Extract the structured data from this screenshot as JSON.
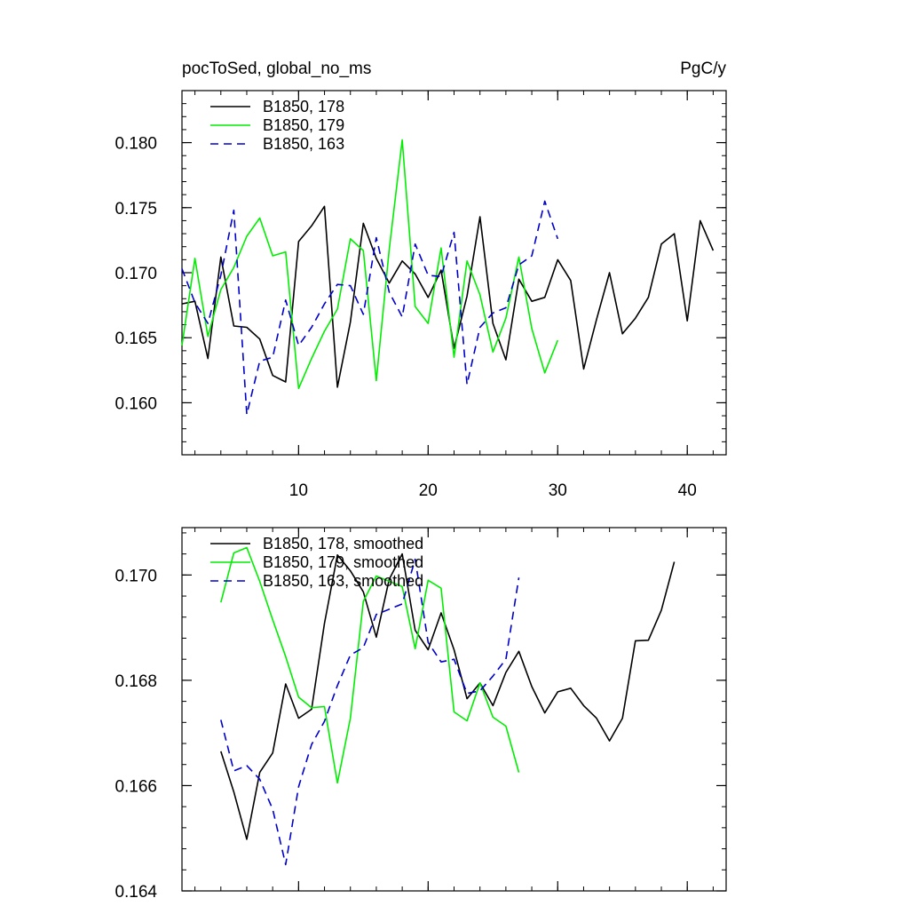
{
  "chart_data": [
    {
      "type": "line",
      "title": "pocToSed, global_no_ms",
      "units": "PgC/y",
      "xlim": [
        1,
        43
      ],
      "ylim": [
        0.156,
        0.184
      ],
      "x_ticks": [
        10,
        20,
        30,
        40
      ],
      "y_ticks": [
        0.16,
        0.165,
        0.17,
        0.175,
        0.18
      ],
      "y_tick_labels": [
        "0.160",
        "0.165",
        "0.170",
        "0.175",
        "0.180"
      ],
      "legend_position": "top-left",
      "series": [
        {
          "name": "B1850, 178",
          "color": "#000000",
          "dash": "solid",
          "x": [
            1,
            2,
            3,
            4,
            5,
            6,
            7,
            8,
            9,
            10,
            11,
            12,
            13,
            14,
            15,
            16,
            17,
            18,
            19,
            20,
            21,
            22,
            23,
            24,
            25,
            26,
            27,
            28,
            29,
            30,
            31,
            32,
            33,
            34,
            35,
            36,
            37,
            38,
            39,
            40,
            41,
            42
          ],
          "y": [
            0.1676,
            0.1678,
            0.1634,
            0.1712,
            0.1659,
            0.1658,
            0.1649,
            0.1621,
            0.1616,
            0.1724,
            0.1736,
            0.1751,
            0.1612,
            0.1662,
            0.1738,
            0.1711,
            0.1692,
            0.1709,
            0.1699,
            0.1681,
            0.1702,
            0.1642,
            0.1682,
            0.1743,
            0.1661,
            0.1633,
            0.1695,
            0.1678,
            0.1681,
            0.171,
            0.1694,
            0.1626,
            0.1664,
            0.17,
            0.1653,
            0.1665,
            0.1681,
            0.1722,
            0.173,
            0.1663,
            0.174,
            0.1717
          ]
        },
        {
          "name": "B1850, 179",
          "color": "#00ee00",
          "dash": "solid",
          "x": [
            1,
            2,
            3,
            4,
            5,
            6,
            7,
            8,
            9,
            10,
            11,
            12,
            13,
            14,
            15,
            16,
            17,
            18,
            19,
            20,
            21,
            22,
            23,
            24,
            25,
            26,
            27,
            28,
            29,
            30
          ],
          "y": [
            0.1644,
            0.1711,
            0.1651,
            0.1687,
            0.1704,
            0.1728,
            0.1742,
            0.1713,
            0.1716,
            0.1611,
            0.1634,
            0.1655,
            0.1672,
            0.1726,
            0.1717,
            0.1617,
            0.1718,
            0.1802,
            0.1674,
            0.1661,
            0.1719,
            0.1635,
            0.1709,
            0.1683,
            0.1639,
            0.1665,
            0.1712,
            0.1657,
            0.1623,
            0.1648
          ]
        },
        {
          "name": "B1850, 163",
          "color": "#0000cc",
          "dash": "dashed",
          "x": [
            1,
            2,
            3,
            4,
            5,
            6,
            7,
            8,
            9,
            10,
            11,
            12,
            13,
            14,
            15,
            16,
            17,
            18,
            19,
            20,
            21,
            22,
            23,
            24,
            25,
            26,
            27,
            28,
            29,
            30
          ],
          "y": [
            0.1703,
            0.1677,
            0.1661,
            0.1698,
            0.1748,
            0.1591,
            0.1632,
            0.1635,
            0.1679,
            0.1644,
            0.1658,
            0.1676,
            0.1691,
            0.169,
            0.1668,
            0.1727,
            0.1685,
            0.1666,
            0.1722,
            0.1698,
            0.1697,
            0.1731,
            0.1614,
            0.1658,
            0.1669,
            0.1673,
            0.1706,
            0.1713,
            0.1755,
            0.1726
          ]
        }
      ]
    },
    {
      "type": "line",
      "xlim": [
        1,
        43
      ],
      "ylim": [
        0.164,
        0.1709
      ],
      "x_ticks": [
        10,
        20,
        30,
        40
      ],
      "y_ticks": [
        0.164,
        0.166,
        0.168,
        0.17
      ],
      "y_tick_labels": [
        "0.164",
        "0.166",
        "0.168",
        "0.170"
      ],
      "legend_position": "top-left",
      "series": [
        {
          "name": "B1850, 178, smoothed",
          "color": "#000000",
          "dash": "solid",
          "x": [
            4,
            5,
            6,
            7,
            8,
            9,
            10,
            11,
            12,
            13,
            14,
            15,
            16,
            17,
            18,
            19,
            20,
            21,
            22,
            23,
            24,
            25,
            26,
            27,
            28,
            29,
            30,
            31,
            32,
            33,
            34,
            35,
            36,
            37,
            38,
            39
          ],
          "y": [
            0.16665,
            0.16588,
            0.16498,
            0.16625,
            0.16662,
            0.16793,
            0.16728,
            0.16745,
            0.16908,
            0.17038,
            0.17008,
            0.16968,
            0.16882,
            0.16992,
            0.1704,
            0.16895,
            0.16858,
            0.16928,
            0.16858,
            0.16765,
            0.16795,
            0.16752,
            0.16815,
            0.16855,
            0.16788,
            0.16738,
            0.16778,
            0.16785,
            0.16752,
            0.16728,
            0.16685,
            0.16728,
            0.16875,
            0.16876,
            0.16933,
            0.17025
          ]
        },
        {
          "name": "B1850, 179, smoothed",
          "color": "#00ee00",
          "dash": "solid",
          "x": [
            4,
            5,
            6,
            7,
            8,
            9,
            10,
            11,
            12,
            13,
            14,
            15,
            16,
            17,
            18,
            19,
            20,
            21,
            22,
            23,
            24,
            25,
            26,
            27
          ],
          "y": [
            0.16948,
            0.17042,
            0.17052,
            0.16988,
            0.16915,
            0.16845,
            0.16768,
            0.16748,
            0.1675,
            0.16605,
            0.16728,
            0.1695,
            0.16998,
            0.16988,
            0.16978,
            0.1686,
            0.1699,
            0.16975,
            0.1674,
            0.16723,
            0.16795,
            0.1673,
            0.16713,
            0.16625
          ]
        },
        {
          "name": "B1850, 163, smoothed",
          "color": "#0000cc",
          "dash": "dashed",
          "x": [
            4,
            5,
            6,
            7,
            8,
            9,
            10,
            11,
            12,
            13,
            14,
            15,
            16,
            17,
            18,
            19,
            20,
            21,
            22,
            23,
            24,
            25,
            26,
            27
          ],
          "y": [
            0.16725,
            0.16628,
            0.16638,
            0.16612,
            0.16555,
            0.1645,
            0.16598,
            0.16678,
            0.16722,
            0.1679,
            0.16848,
            0.16862,
            0.16925,
            0.16935,
            0.16945,
            0.1703,
            0.16872,
            0.16835,
            0.1684,
            0.16775,
            0.1678,
            0.16808,
            0.1684,
            0.16995
          ]
        }
      ]
    }
  ]
}
